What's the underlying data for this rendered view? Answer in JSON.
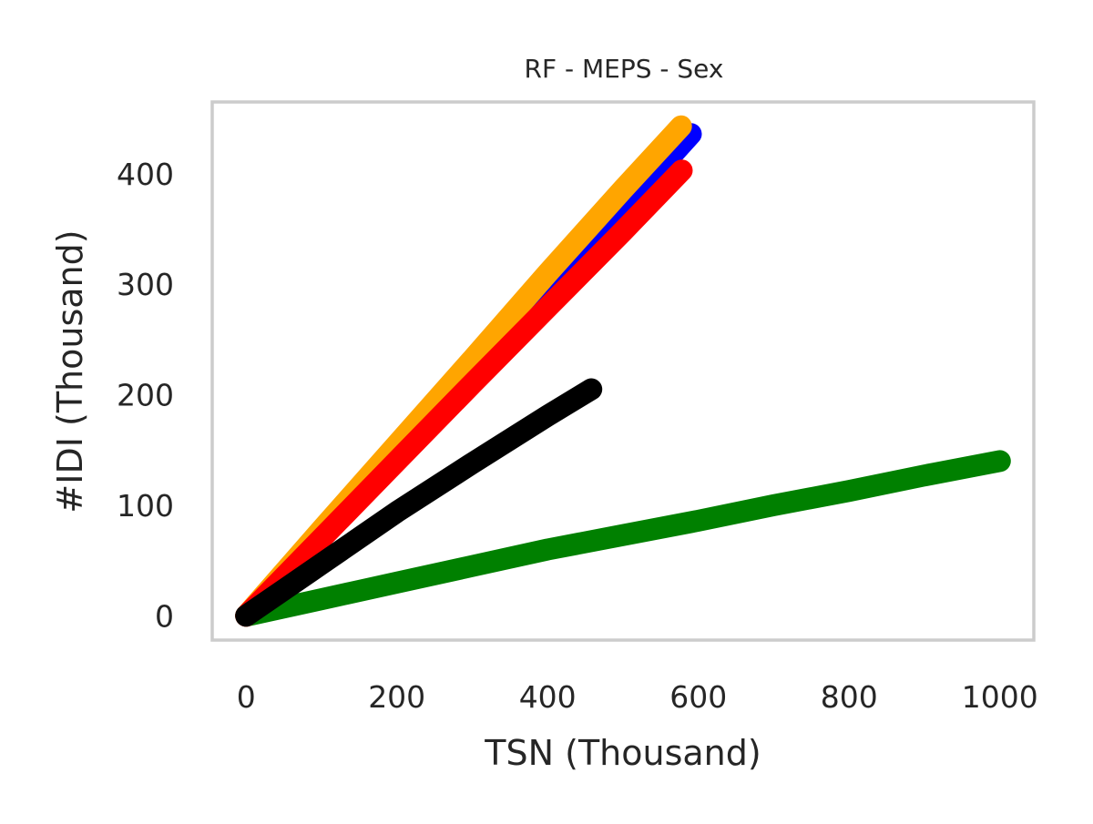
{
  "chart_data": {
    "type": "line",
    "title": "RF - MEPS - Sex",
    "xlabel": "TSN (Thousand)",
    "ylabel": "#IDI (Thousand)",
    "xlim": [
      -45,
      1045
    ],
    "ylim": [
      -22,
      465
    ],
    "x_ticks": [
      "0",
      "200",
      "400",
      "600",
      "800",
      "1000"
    ],
    "y_ticks": [
      "0",
      "100",
      "200",
      "300",
      "400"
    ],
    "grid": false,
    "legend": "none",
    "frame_color": "#cccccc",
    "series": [
      {
        "color": "#0000ff",
        "x": [
          0,
          100,
          200,
          300,
          400,
          500,
          590
        ],
        "y": [
          0,
          73,
          147,
          221,
          295,
          368,
          436
        ]
      },
      {
        "color": "#008000",
        "x": [
          0,
          100,
          200,
          300,
          400,
          500,
          600,
          700,
          800,
          900,
          1000
        ],
        "y": [
          0,
          15,
          30,
          45,
          60,
          73,
          86,
          100,
          113,
          127,
          140
        ]
      },
      {
        "color": "#ffa500",
        "x": [
          0,
          100,
          200,
          300,
          400,
          500,
          577
        ],
        "y": [
          0,
          78,
          155,
          232,
          310,
          386,
          443
        ]
      },
      {
        "color": "#ff0000",
        "x": [
          0,
          100,
          200,
          300,
          400,
          500,
          578
        ],
        "y": [
          0,
          70,
          140,
          210,
          279,
          348,
          403
        ]
      },
      {
        "color": "#000000",
        "x": [
          0,
          100,
          200,
          300,
          400,
          458
        ],
        "y": [
          0,
          47,
          94,
          138,
          181,
          205
        ]
      }
    ]
  }
}
